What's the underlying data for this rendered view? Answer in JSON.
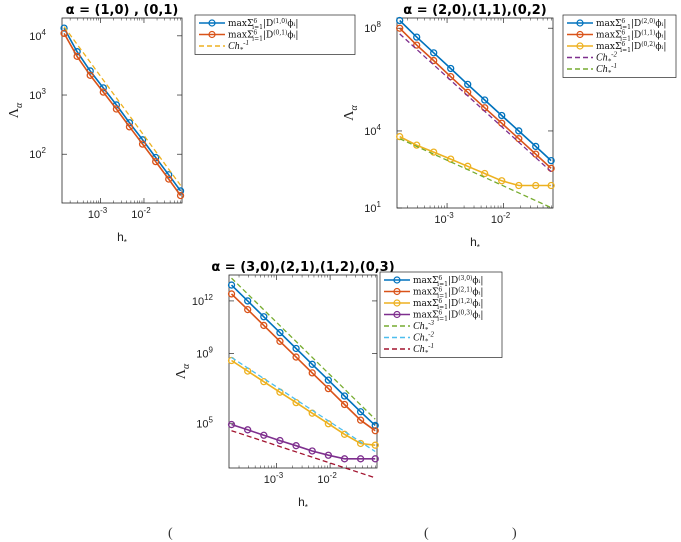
{
  "caption_fragments": [
    "(",
    "(",
    ")"
  ],
  "chart_data": [
    {
      "type": "line",
      "title": "α = (1,0) , (0,1)",
      "xlabel": "h",
      "xlabel_sub": "*",
      "ylabel": "Λ",
      "ylabel_sub": "α",
      "xscale": "log",
      "yscale": "log",
      "xlim": [
        0.00013,
        0.075
      ],
      "ylim": [
        15,
        20000
      ],
      "xticks": [
        {
          "v": 0.001,
          "base": "10",
          "exp": "-3"
        },
        {
          "v": 0.01,
          "base": "10",
          "exp": "-2"
        }
      ],
      "yticks": [
        {
          "v": 100,
          "base": "10",
          "exp": "2"
        },
        {
          "v": 1000,
          "base": "10",
          "exp": "3"
        },
        {
          "v": 10000,
          "base": "10",
          "exp": "4"
        }
      ],
      "legend_position": "outside-right-top",
      "series": [
        {
          "name": "maxΣ⁶ᵢ₌₁|D(1,0)ϕᵢ|",
          "label_main": "maxΣ",
          "label_sub": "i=1",
          "label_sup": "6",
          "label_body": "|D",
          "label_body_sup": "(1,0)",
          "label_tail": "ϕᵢ|",
          "color": "#0072BD",
          "style": "solid",
          "marker": "circle",
          "x": [
            0.000145,
            0.00029,
            0.00058,
            0.00116,
            0.00232,
            0.00464,
            0.00928,
            0.0186,
            0.0371,
            0.0695
          ],
          "y": [
            13500,
            5400,
            2550,
            1320,
            680,
            340,
            175,
            88,
            45,
            24
          ]
        },
        {
          "name": "maxΣ⁶ᵢ₌₁|D(0,1)ϕᵢ|",
          "label_main": "maxΣ",
          "label_sub": "i=1",
          "label_sup": "6",
          "label_body": "|D",
          "label_body_sup": "(0,1)",
          "label_tail": "ϕᵢ|",
          "color": "#D95319",
          "style": "solid",
          "marker": "circle",
          "x": [
            0.000145,
            0.00029,
            0.00058,
            0.00116,
            0.00232,
            0.00464,
            0.00928,
            0.0186,
            0.0371,
            0.0695
          ],
          "y": [
            11000,
            4500,
            2150,
            1120,
            580,
            290,
            148,
            75,
            38,
            20
          ]
        },
        {
          "name": "Ch⁻¹",
          "label_main": "Ch",
          "label_sub": "*",
          "label_sup": "-1",
          "color": "#EDB120",
          "style": "dashed",
          "marker": "none",
          "x": [
            0.000145,
            0.0695
          ],
          "y": [
            14300,
            29.8
          ]
        }
      ]
    },
    {
      "type": "line",
      "title": "α = (2,0),(1,1),(0,2)",
      "xlabel": "h",
      "xlabel_sub": "*",
      "ylabel": "Λ",
      "ylabel_sub": "α",
      "xscale": "log",
      "yscale": "log",
      "xlim": [
        0.00013,
        0.075
      ],
      "ylim": [
        10,
        250000000
      ],
      "xticks": [
        {
          "v": 0.001,
          "base": "10",
          "exp": "-3"
        },
        {
          "v": 0.01,
          "base": "10",
          "exp": "-2"
        }
      ],
      "yticks": [
        {
          "v": 10,
          "base": "10",
          "exp": "1"
        },
        {
          "v": 10000,
          "base": "10",
          "exp": "4"
        },
        {
          "v": 100000000,
          "base": "10",
          "exp": "8"
        }
      ],
      "legend_position": "outside-right-top",
      "series": [
        {
          "name": "maxΣ⁶ᵢ₌₁|D(2,0)ϕᵢ|",
          "label_main": "maxΣ",
          "label_sub": "i=1",
          "label_sup": "6",
          "label_body": "|D",
          "label_body_sup": "(2,0)",
          "label_tail": "ϕᵢ|",
          "color": "#0072BD",
          "style": "solid",
          "marker": "circle",
          "x": [
            0.000145,
            0.00029,
            0.00058,
            0.00116,
            0.00232,
            0.00464,
            0.00928,
            0.0186,
            0.0371,
            0.0695
          ],
          "y": [
            200000000,
            45000000,
            11000000,
            2700000,
            650000,
            160000,
            40000,
            10000,
            2500,
            700
          ]
        },
        {
          "name": "maxΣ⁶ᵢ₌₁|D(1,1)ϕᵢ|",
          "label_main": "maxΣ",
          "label_sub": "i=1",
          "label_sup": "6",
          "label_body": "|D",
          "label_body_sup": "(1,1)",
          "label_tail": "ϕᵢ|",
          "color": "#D95319",
          "style": "solid",
          "marker": "circle",
          "x": [
            0.000145,
            0.00029,
            0.00058,
            0.00116,
            0.00232,
            0.00464,
            0.00928,
            0.0186,
            0.0371,
            0.0695
          ],
          "y": [
            100000000,
            22000000,
            5500000,
            1300000,
            320000,
            80000,
            20000,
            5000,
            1250,
            350
          ]
        },
        {
          "name": "maxΣ⁶ᵢ₌₁|D(0,2)ϕᵢ|",
          "label_main": "maxΣ",
          "label_sub": "i=1",
          "label_sup": "6",
          "label_body": "|D",
          "label_body_sup": "(0,2)",
          "label_tail": "ϕᵢ|",
          "color": "#EDB120",
          "style": "solid",
          "marker": "circle",
          "x": [
            0.000145,
            0.00029,
            0.00058,
            0.00116,
            0.00232,
            0.00464,
            0.00928,
            0.0186,
            0.0371,
            0.0695
          ],
          "y": [
            6000,
            2800,
            1500,
            800,
            420,
            220,
            115,
            75,
            75,
            75
          ]
        },
        {
          "name": "Ch⁻²",
          "label_main": "Ch",
          "label_sub": "*",
          "label_sup": "-2",
          "color": "#7E2F8E",
          "style": "dashed",
          "marker": "none",
          "x": [
            0.000145,
            0.0695
          ],
          "y": [
            60000000,
            261
          ]
        },
        {
          "name": "Ch⁻¹",
          "label_main": "Ch",
          "label_sub": "*",
          "label_sup": "-1",
          "color": "#77AC30",
          "style": "dashed",
          "marker": "none",
          "x": [
            0.000145,
            0.0695
          ],
          "y": [
            5000,
            10.4
          ]
        }
      ]
    },
    {
      "type": "line",
      "title": "α = (3,0),(2,1),(1,2),(0,3)",
      "xlabel": "h",
      "xlabel_sub": "*",
      "ylabel": "Λ",
      "ylabel_sub": "α",
      "xscale": "log",
      "yscale": "log",
      "xlim": [
        0.00013,
        0.075
      ],
      "ylim": [
        300,
        30000000000000
      ],
      "xticks": [
        {
          "v": 0.001,
          "base": "10",
          "exp": "-3"
        },
        {
          "v": 0.01,
          "base": "10",
          "exp": "-2"
        }
      ],
      "yticks": [
        {
          "v": 100000,
          "base": "10",
          "exp": "5"
        },
        {
          "v": 1000000000,
          "base": "10",
          "exp": "9"
        },
        {
          "v": 1000000000000,
          "base": "10",
          "exp": "12"
        }
      ],
      "legend_position": "outside-right-top",
      "series": [
        {
          "name": "maxΣ⁶ᵢ₌₁|D(3,0)ϕᵢ|",
          "label_main": "maxΣ",
          "label_sub": "i=1",
          "label_sup": "6",
          "label_body": "|D",
          "label_body_sup": "(3,0)",
          "label_tail": "ϕᵢ|",
          "color": "#0072BD",
          "style": "solid",
          "marker": "circle",
          "x": [
            0.000145,
            0.00029,
            0.00058,
            0.00116,
            0.00232,
            0.00464,
            0.00928,
            0.0186,
            0.0371,
            0.0695
          ],
          "y": [
            8000000000000,
            1000000000000,
            125000000000,
            15600000000,
            1950000000,
            244000000,
            30500000,
            3800000,
            480000,
            80000
          ]
        },
        {
          "name": "maxΣ⁶ᵢ₌₁|D(2,1)ϕᵢ|",
          "label_main": "maxΣ",
          "label_sub": "i=1",
          "label_sup": "6",
          "label_body": "|D",
          "label_body_sup": "(2,1)",
          "label_tail": "ϕᵢ|",
          "color": "#D95319",
          "style": "solid",
          "marker": "circle",
          "x": [
            0.000145,
            0.00029,
            0.00058,
            0.00116,
            0.00232,
            0.00464,
            0.00928,
            0.0186,
            0.0371,
            0.0695
          ],
          "y": [
            2500000000000,
            320000000000,
            40000000000,
            5000000000,
            630000000,
            79000000,
            10000000,
            1250000,
            160000,
            40000
          ]
        },
        {
          "name": "maxΣ⁶ᵢ₌₁|D(1,2)ϕᵢ|",
          "label_main": "maxΣ",
          "label_sub": "i=1",
          "label_sup": "6",
          "label_body": "|D",
          "label_body_sup": "(1,2)",
          "label_tail": "ϕᵢ|",
          "color": "#EDB120",
          "style": "solid",
          "marker": "circle",
          "x": [
            0.000145,
            0.00029,
            0.00058,
            0.00116,
            0.00232,
            0.00464,
            0.00928,
            0.0186,
            0.0371,
            0.0695
          ],
          "y": [
            400000000,
            100000000,
            25000000,
            6300000,
            1600000,
            400000,
            100000,
            25000,
            7500,
            6000
          ]
        },
        {
          "name": "maxΣ⁶ᵢ₌₁|D(0,3)ϕᵢ|",
          "label_main": "maxΣ",
          "label_sub": "i=1",
          "label_sup": "6",
          "label_body": "|D",
          "label_body_sup": "(0,3)",
          "label_tail": "ϕᵢ|",
          "color": "#7E2F8E",
          "style": "solid",
          "marker": "circle",
          "x": [
            0.000145,
            0.00029,
            0.00058,
            0.00116,
            0.00232,
            0.00464,
            0.00928,
            0.0186,
            0.0371,
            0.0695
          ],
          "y": [
            90000,
            45000,
            22000,
            11000,
            5600,
            2800,
            1600,
            1000,
            1000,
            1000
          ]
        },
        {
          "name": "Ch⁻³",
          "label_main": "Ch",
          "label_sub": "*",
          "label_sup": "-3",
          "color": "#77AC30",
          "style": "dashed",
          "marker": "none",
          "x": [
            0.000145,
            0.0695
          ],
          "y": [
            20000000000000,
            181000
          ]
        },
        {
          "name": "Ch⁻²",
          "label_main": "Ch",
          "label_sub": "*",
          "label_sup": "-2",
          "color": "#4DBEEE",
          "style": "dashed",
          "marker": "none",
          "x": [
            0.000145,
            0.0695
          ],
          "y": [
            600000000,
            2610
          ]
        },
        {
          "name": "Ch⁻¹",
          "label_main": "Ch",
          "label_sub": "*",
          "label_sup": "-1",
          "color": "#A2142F",
          "style": "dashed",
          "marker": "none",
          "x": [
            0.000145,
            0.0695
          ],
          "y": [
            40000,
            83
          ]
        }
      ]
    }
  ]
}
